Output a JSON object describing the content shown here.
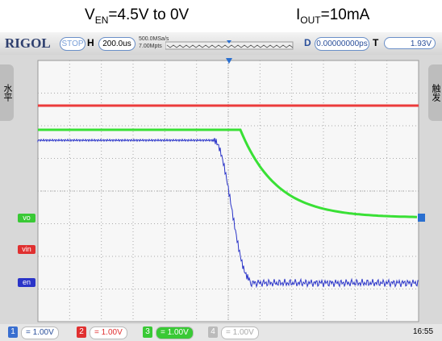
{
  "header": {
    "ven": {
      "symbol": "V",
      "subscript": "EN",
      "text": "=4.5V to 0V"
    },
    "iout": {
      "symbol": "I",
      "subscript": "OUT",
      "text": "=10mA"
    }
  },
  "toolbar": {
    "brand": "RIGOL",
    "status": "STOP",
    "h_label": "H",
    "timebase": "200.0us",
    "sample_rate": "500.0MSa/s",
    "memory_depth": "7.00Mpts",
    "d_label": "D",
    "delay": "0.00000000ps",
    "t_label": "T",
    "trigger_level": "1.93V"
  },
  "side": {
    "left": "水平",
    "right": "触发"
  },
  "channels": [
    {
      "label": "vo"
    },
    {
      "label": "vin"
    },
    {
      "label": "en"
    }
  ],
  "bottom": {
    "channels": [
      {
        "number": "1",
        "scale": "= 1.00V"
      },
      {
        "number": "2",
        "scale": "= 1.00V"
      },
      {
        "number": "3",
        "scale": "= 1.00V"
      },
      {
        "number": "4",
        "scale": "= 1.00V"
      }
    ],
    "clock": "16:55"
  }
}
